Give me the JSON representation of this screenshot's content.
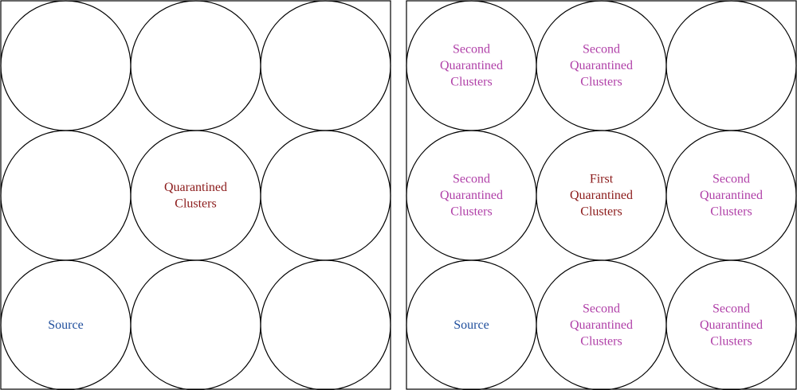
{
  "colors": {
    "source": "#1f4e9c",
    "first": "#8b1a1a",
    "second": "#b040a8",
    "stroke": "#000000"
  },
  "panels": [
    {
      "cells": [
        {
          "lines": [],
          "color": ""
        },
        {
          "lines": [],
          "color": ""
        },
        {
          "lines": [],
          "color": ""
        },
        {
          "lines": [],
          "color": ""
        },
        {
          "lines": [
            "Quarantined",
            "Clusters"
          ],
          "color": "first"
        },
        {
          "lines": [],
          "color": ""
        },
        {
          "lines": [
            "Source"
          ],
          "color": "source"
        },
        {
          "lines": [],
          "color": ""
        },
        {
          "lines": [],
          "color": ""
        }
      ]
    },
    {
      "cells": [
        {
          "lines": [
            "Second",
            "Quarantined",
            "Clusters"
          ],
          "color": "second"
        },
        {
          "lines": [
            "Second",
            "Quarantined",
            "Clusters"
          ],
          "color": "second"
        },
        {
          "lines": [],
          "color": ""
        },
        {
          "lines": [
            "Second",
            "Quarantined",
            "Clusters"
          ],
          "color": "second"
        },
        {
          "lines": [
            "First",
            "Quarantined",
            "Clusters"
          ],
          "color": "first"
        },
        {
          "lines": [
            "Second",
            "Quarantined",
            "Clusters"
          ],
          "color": "second"
        },
        {
          "lines": [
            "Source"
          ],
          "color": "source"
        },
        {
          "lines": [
            "Second",
            "Quarantined",
            "Clusters"
          ],
          "color": "second"
        },
        {
          "lines": [
            "Second",
            "Quarantined",
            "Clusters"
          ],
          "color": "second"
        }
      ]
    }
  ]
}
